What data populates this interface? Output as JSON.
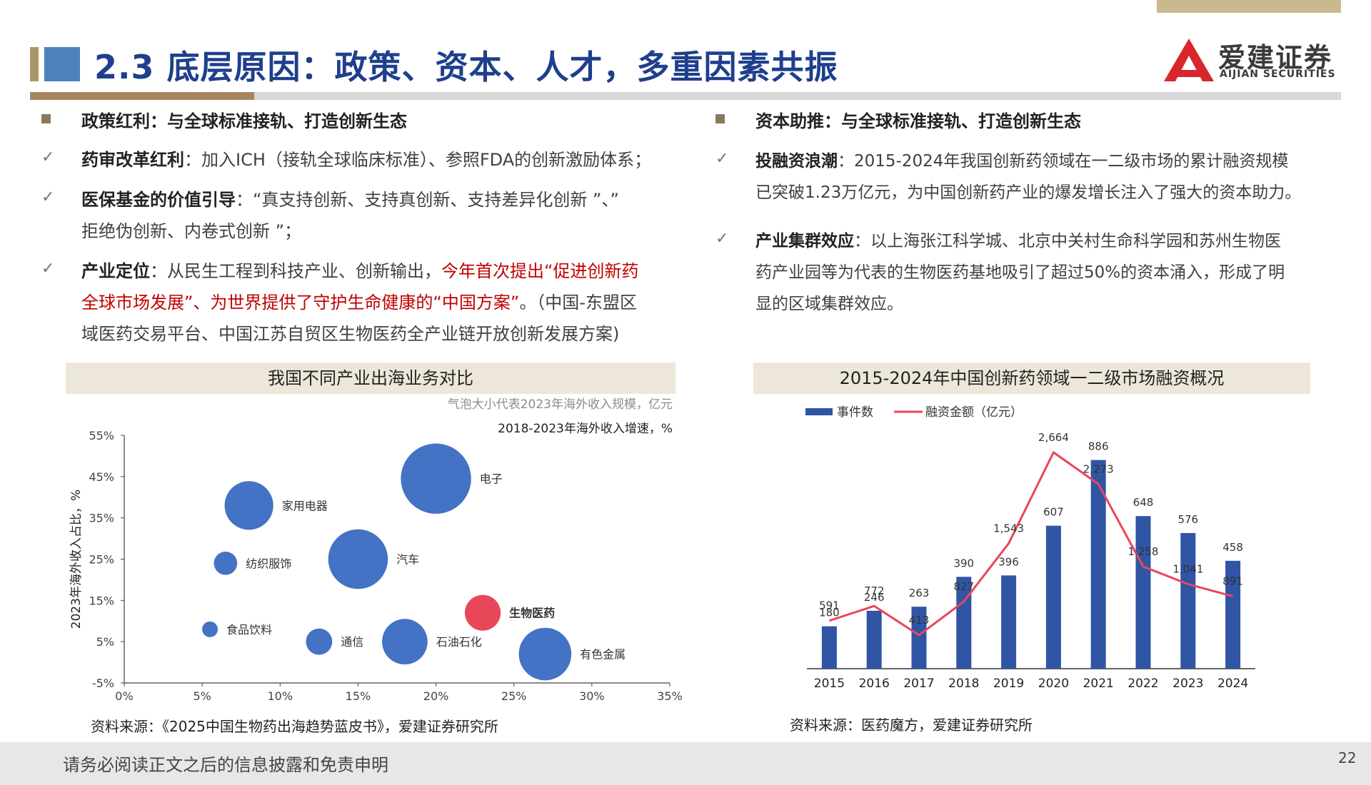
{
  "header": {
    "title": "2.3 底层原因：政策、资本、人才，多重因素共振",
    "logo_cn": "爱建证券",
    "logo_en": "AIJIAN SECURITIES"
  },
  "left": {
    "heading": "政策红利：与全球标准接轨、打造创新生态",
    "items": [
      {
        "key": "药审改革红利",
        "text": "：加入ICH（接轨全球临床标准）、参照FDA的创新激励体系；"
      },
      {
        "key": "医保基金的价值引导",
        "text_line1": "：“真支持创新、支持真创新、支持差异化创新 ”、”",
        "text_line2": "拒绝伪创新、内卷式创新 ”；"
      },
      {
        "key": "产业定位",
        "text_a": "：从民生工程到科技产业、创新输出，",
        "red_a": "今年首次提出“促进创新药",
        "red_b": "全球市场发展”、为世界提供了守护生命健康的“中国方案”",
        "text_b": "。（中国-东盟区",
        "text_c": "域医药交易平台、中国江苏自贸区生物医药全产业链开放创新发展方案)"
      }
    ]
  },
  "right": {
    "heading": "资本助推：与全球标准接轨、打造创新生态",
    "items": [
      {
        "key": "投融资浪潮",
        "text_line1": "：2015-2024年我国创新药领域在一二级市场的累计融资规模",
        "text_line2": "已突破1.23万亿元，为中国创新药产业的爆发增长注入了强大的资本助力。"
      },
      {
        "key": "产业集群效应",
        "text_line1": "：以上海张江科学城、北京中关村生命科学园和苏州生物医",
        "text_line2": "药产业园等为代表的生物医药基地吸引了超过50%的资本涌入，形成了明",
        "text_line3": "显的区域集群效应。"
      }
    ]
  },
  "chart_data": [
    {
      "type": "scatter",
      "title": "我国不同产业出海业务对比",
      "note_size": "气泡大小代表2023年海外收入规模，亿元",
      "xlabel": "2018-2023年海外收入增速，%",
      "ylabel": "2023年海外收入占比，%",
      "xlim": [
        0,
        35
      ],
      "ylim": [
        -5,
        55
      ],
      "x_ticks": [
        "0%",
        "5%",
        "10%",
        "15%",
        "20%",
        "25%",
        "30%",
        "35%"
      ],
      "y_ticks": [
        "55%",
        "45%",
        "35%",
        "25%",
        "15%",
        "5%",
        "-5%"
      ],
      "points": [
        {
          "label": "电子",
          "x": 20,
          "y": 44.5,
          "size": 5.0,
          "color": "#4472c4",
          "bold": false
        },
        {
          "label": "家用电器",
          "x": 8,
          "y": 38,
          "size": 2.4,
          "color": "#4472c4",
          "bold": false
        },
        {
          "label": "纺织服饰",
          "x": 6.5,
          "y": 24,
          "size": 0.55,
          "color": "#4472c4",
          "bold": false
        },
        {
          "label": "汽车",
          "x": 15,
          "y": 25,
          "size": 3.6,
          "color": "#4472c4",
          "bold": false
        },
        {
          "label": "生物医药",
          "x": 23,
          "y": 12,
          "size": 1.3,
          "color": "#e8475a",
          "bold": true
        },
        {
          "label": "食品饮料",
          "x": 5.5,
          "y": 8,
          "size": 0.25,
          "color": "#4472c4",
          "bold": false
        },
        {
          "label": "通信",
          "x": 12.5,
          "y": 5,
          "size": 0.7,
          "color": "#4472c4",
          "bold": false
        },
        {
          "label": "石油石化",
          "x": 18,
          "y": 5,
          "size": 2.1,
          "color": "#4472c4",
          "bold": false
        },
        {
          "label": "有色金属",
          "x": 27,
          "y": 2,
          "size": 2.8,
          "color": "#4472c4",
          "bold": false
        }
      ],
      "source": "资料来源：《2025中国生物药出海趋势蓝皮书》，爱建证券研究所"
    },
    {
      "type": "bar",
      "title": "2015-2024年中国创新药领域一二级市场融资概况",
      "categories": [
        "2015",
        "2016",
        "2017",
        "2018",
        "2019",
        "2020",
        "2021",
        "2022",
        "2023",
        "2024"
      ],
      "series": [
        {
          "name": "事件数",
          "type": "bar",
          "color": "#2f55a4",
          "values": [
            180,
            246,
            263,
            390,
            396,
            607,
            886,
            648,
            576,
            458
          ],
          "labels": [
            "180",
            "246",
            "263",
            "390",
            "396",
            "607",
            "886",
            "648",
            "576",
            "458"
          ]
        },
        {
          "name": "融资金额（亿元）",
          "type": "line",
          "color": "#e8475a",
          "values": [
            591,
            772,
            413,
            827,
            1543,
            2664,
            2273,
            1258,
            1041,
            891
          ],
          "labels": [
            "591",
            "772",
            "413",
            "827",
            "1,543",
            "2,664",
            "2,273",
            "1,258",
            "1,041",
            "891"
          ]
        }
      ],
      "bar_max": 1000,
      "line_max": 2900,
      "source": "资料来源：医药魔方，爱建证券研究所"
    }
  ],
  "footer": {
    "disclaimer": "请务必阅读正文之后的信息披露和免责申明",
    "page": "22"
  }
}
